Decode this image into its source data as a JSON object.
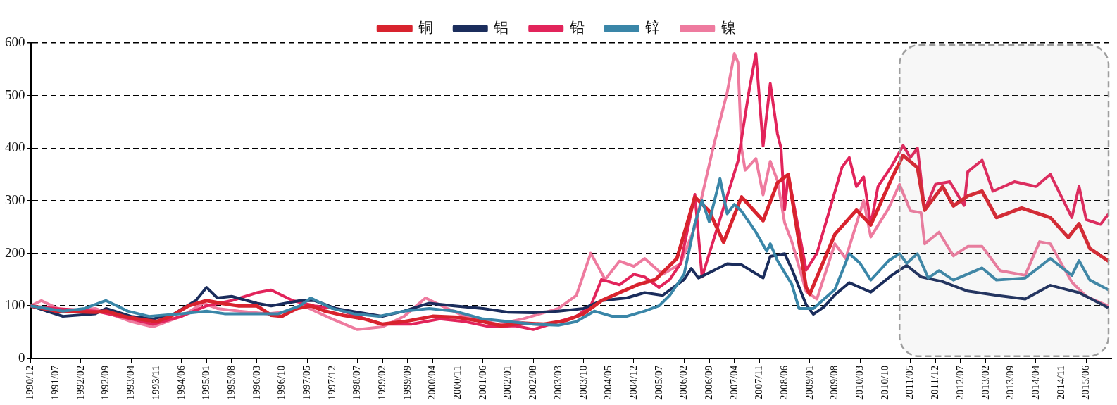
{
  "chart_data": {
    "type": "line",
    "xlim": [
      "1990-12",
      "2016-01"
    ],
    "xticks": [
      {
        "value": "1990-12",
        "label": "1990/12"
      },
      {
        "value": "1991-07",
        "label": "1991/07"
      },
      {
        "value": "1992-02",
        "label": "1992/02"
      },
      {
        "value": "1992-09",
        "label": "1992/09"
      },
      {
        "value": "1993-04",
        "label": "1993/04"
      },
      {
        "value": "1993-11",
        "label": "1993/11"
      },
      {
        "value": "1994-06",
        "label": "1994/06"
      },
      {
        "value": "1995-01",
        "label": "1995/01"
      },
      {
        "value": "1995-08",
        "label": "1995/08"
      },
      {
        "value": "1996-03",
        "label": "1996/03"
      },
      {
        "value": "1996-10",
        "label": "1996/10"
      },
      {
        "value": "1997-05",
        "label": "1997/05"
      },
      {
        "value": "1997-12",
        "label": "1997/12"
      },
      {
        "value": "1998-07",
        "label": "1998/07"
      },
      {
        "value": "1999-02",
        "label": "1999/02"
      },
      {
        "value": "1999-09",
        "label": "1999/09"
      },
      {
        "value": "2000-04",
        "label": "2000/04"
      },
      {
        "value": "2000-11",
        "label": "2000/11"
      },
      {
        "value": "2001-06",
        "label": "2001/06"
      },
      {
        "value": "2002-01",
        "label": "2002/01"
      },
      {
        "value": "2002-08",
        "label": "2002/08"
      },
      {
        "value": "2003-03",
        "label": "2003/03"
      },
      {
        "value": "2003-10",
        "label": "2003/10"
      },
      {
        "value": "2004-05",
        "label": "2004/05"
      },
      {
        "value": "2004-12",
        "label": "2004/12"
      },
      {
        "value": "2005-07",
        "label": "2005/07"
      },
      {
        "value": "2006-02",
        "label": "2006/02"
      },
      {
        "value": "2006-09",
        "label": "2006/09"
      },
      {
        "value": "2007-04",
        "label": "2007/04"
      },
      {
        "value": "2007-11",
        "label": "2007/11"
      },
      {
        "value": "2008-06",
        "label": "2008/06"
      },
      {
        "value": "2009-01",
        "label": "2009/01"
      },
      {
        "value": "2009-08",
        "label": "2009/08"
      },
      {
        "value": "2010-03",
        "label": "2010/03"
      },
      {
        "value": "2010-10",
        "label": "2010/10"
      },
      {
        "value": "2011-05",
        "label": "2011/05"
      },
      {
        "value": "2011-12",
        "label": "2011/12"
      },
      {
        "value": "2012-07",
        "label": "2012/07"
      },
      {
        "value": "2013-02",
        "label": "2013/02"
      },
      {
        "value": "2013-09",
        "label": "2013/09"
      },
      {
        "value": "2014-04",
        "label": "2014/04"
      },
      {
        "value": "2014-11",
        "label": "2014/11"
      },
      {
        "value": "2015-06",
        "label": "2015/06"
      }
    ],
    "ylim": [
      0,
      600
    ],
    "yticks": [
      0,
      100,
      200,
      300,
      400,
      500,
      600
    ],
    "grid": "y",
    "legend": "top",
    "bands": [
      {
        "axis": "x",
        "from": "2011-02",
        "to": "2016-01",
        "color": "#9e9e9e"
      }
    ],
    "series": [
      {
        "name": "铜",
        "color": "#d8232e",
        "x": [
          "1990-12",
          "1991-07",
          "1992-06",
          "1992-09",
          "1993-02",
          "1993-06",
          "1993-11",
          "1994-03",
          "1994-08",
          "1995-01",
          "1995-05",
          "1995-10",
          "1996-03",
          "1996-07",
          "1996-10",
          "1997-02",
          "1997-06",
          "1997-10",
          "1998-03",
          "1998-09",
          "1999-02",
          "1999-08",
          "2000-04",
          "2000-11",
          "2001-06",
          "2001-11",
          "2002-05",
          "2002-11",
          "2003-05",
          "2003-10",
          "2004-03",
          "2004-08",
          "2005-01",
          "2005-06",
          "2005-12",
          "2006-05",
          "2006-09",
          "2007-01",
          "2007-06",
          "2007-12",
          "2008-04",
          "2008-07",
          "2008-12",
          "2009-01",
          "2009-08",
          "2010-02",
          "2010-06",
          "2010-12",
          "2011-03",
          "2011-07",
          "2011-09",
          "2012-02",
          "2012-05",
          "2012-09",
          "2013-01",
          "2013-05",
          "2013-12",
          "2014-08",
          "2015-01",
          "2015-04",
          "2015-07",
          "2015-12"
        ],
        "values": [
          100,
          90,
          88,
          90,
          80,
          75,
          70,
          80,
          100,
          110,
          105,
          100,
          100,
          82,
          80,
          95,
          100,
          90,
          82,
          75,
          65,
          70,
          80,
          78,
          70,
          62,
          67,
          65,
          72,
          85,
          110,
          125,
          140,
          150,
          190,
          307,
          280,
          221,
          307,
          262,
          334,
          350,
          135,
          122,
          236,
          282,
          254,
          345,
          386,
          363,
          282,
          327,
          290,
          309,
          318,
          268,
          286,
          268,
          230,
          256,
          209,
          186
        ]
      },
      {
        "name": "铝",
        "color": "#1b2d5c",
        "x": [
          "1990-12",
          "1991-09",
          "1992-06",
          "1992-09",
          "1993-04",
          "1993-10",
          "1994-04",
          "1994-10",
          "1995-01",
          "1995-04",
          "1995-08",
          "1996-03",
          "1996-07",
          "1997-03",
          "1997-07",
          "1998-01",
          "1998-07",
          "1999-02",
          "1999-08",
          "2000-03",
          "2000-10",
          "2001-06",
          "2002-01",
          "2002-08",
          "2003-03",
          "2003-10",
          "2004-03",
          "2004-10",
          "2005-03",
          "2005-08",
          "2006-02",
          "2006-04",
          "2006-06",
          "2007-02",
          "2007-06",
          "2007-12",
          "2008-02",
          "2008-06",
          "2008-08",
          "2008-12",
          "2009-02",
          "2009-05",
          "2009-08",
          "2009-12",
          "2010-06",
          "2010-12",
          "2011-04",
          "2011-08",
          "2012-02",
          "2012-09",
          "2013-06",
          "2014-01",
          "2014-08",
          "2015-04",
          "2015-12"
        ],
        "values": [
          100,
          80,
          85,
          95,
          80,
          75,
          85,
          110,
          135,
          115,
          118,
          105,
          100,
          110,
          110,
          95,
          88,
          80,
          90,
          105,
          100,
          95,
          88,
          87,
          90,
          95,
          110,
          115,
          125,
          120,
          150,
          171,
          153,
          180,
          178,
          153,
          194,
          199,
          170,
          102,
          84,
          98,
          121,
          144,
          126,
          159,
          177,
          155,
          146,
          128,
          119,
          113,
          139,
          125,
          97
        ]
      },
      {
        "name": "铅",
        "color": "#e2245b",
        "x": [
          "1990-12",
          "1991-07",
          "1992-06",
          "1993-04",
          "1993-10",
          "1994-06",
          "1995-01",
          "1995-08",
          "1996-03",
          "1996-07",
          "1997-01",
          "1997-07",
          "1998-01",
          "1998-07",
          "1999-02",
          "1999-10",
          "2000-06",
          "2001-01",
          "2001-08",
          "2002-03",
          "2002-08",
          "2003-03",
          "2003-08",
          "2003-12",
          "2004-03",
          "2004-08",
          "2004-12",
          "2005-03",
          "2005-07",
          "2005-10",
          "2006-01",
          "2006-05",
          "2006-07",
          "2007-05",
          "2007-08",
          "2007-10",
          "2007-12",
          "2008-02",
          "2008-04",
          "2008-05",
          "2008-06",
          "2008-07",
          "2008-12",
          "2009-03",
          "2009-10",
          "2009-12",
          "2010-02",
          "2010-04",
          "2010-06",
          "2010-08",
          "2010-12",
          "2011-03",
          "2011-05",
          "2011-07",
          "2011-09",
          "2011-12",
          "2012-04",
          "2012-08",
          "2012-09",
          "2013-01",
          "2013-04",
          "2013-10",
          "2014-04",
          "2014-08",
          "2015-02",
          "2015-04",
          "2015-06",
          "2015-10",
          "2015-12"
        ],
        "values": [
          100,
          95,
          90,
          75,
          65,
          80,
          100,
          110,
          125,
          130,
          110,
          100,
          95,
          80,
          65,
          65,
          75,
          70,
          60,
          62,
          55,
          70,
          80,
          100,
          150,
          140,
          160,
          155,
          135,
          150,
          180,
          312,
          155,
          375,
          505,
          580,
          404,
          523,
          427,
          400,
          283,
          350,
          168,
          200,
          364,
          382,
          327,
          345,
          254,
          327,
          368,
          405,
          382,
          400,
          282,
          331,
          336,
          291,
          355,
          377,
          318,
          336,
          327,
          350,
          268,
          327,
          264,
          255,
          273
        ]
      },
      {
        "name": "锌",
        "color": "#3a86a8",
        "x": [
          "1990-12",
          "1991-09",
          "1992-03",
          "1992-09",
          "1993-03",
          "1993-09",
          "1994-06",
          "1995-01",
          "1995-06",
          "1996-01",
          "1996-09",
          "1997-03",
          "1997-06",
          "1997-12",
          "1998-06",
          "1999-01",
          "1999-08",
          "2000-03",
          "2000-10",
          "2001-06",
          "2002-01",
          "2002-08",
          "2003-03",
          "2003-08",
          "2004-01",
          "2004-06",
          "2004-10",
          "2005-03",
          "2005-07",
          "2005-10",
          "2006-02",
          "2006-05",
          "2006-07",
          "2006-09",
          "2006-12",
          "2007-02",
          "2007-04",
          "2007-06",
          "2007-10",
          "2008-01",
          "2008-02",
          "2008-04",
          "2008-08",
          "2008-10",
          "2009-02",
          "2009-08",
          "2009-12",
          "2010-03",
          "2010-06",
          "2010-11",
          "2011-02",
          "2011-04",
          "2011-07",
          "2011-10",
          "2012-01",
          "2012-05",
          "2013-01",
          "2013-05",
          "2014-01",
          "2014-08",
          "2015-02",
          "2015-04",
          "2015-07",
          "2015-12"
        ],
        "values": [
          100,
          90,
          95,
          110,
          90,
          80,
          85,
          90,
          85,
          85,
          85,
          100,
          115,
          95,
          85,
          80,
          90,
          95,
          90,
          75,
          70,
          65,
          63,
          70,
          90,
          80,
          80,
          90,
          100,
          120,
          160,
          257,
          300,
          260,
          342,
          275,
          293,
          280,
          240,
          204,
          218,
          186,
          141,
          95,
          95,
          131,
          199,
          181,
          149,
          186,
          199,
          181,
          199,
          153,
          167,
          149,
          172,
          149,
          153,
          190,
          158,
          186,
          149,
          131
        ]
      },
      {
        "name": "镍",
        "color": "#ee7b9f",
        "x": [
          "1990-12",
          "1991-03",
          "1991-09",
          "1992-06",
          "1992-12",
          "1993-04",
          "1993-10",
          "1994-06",
          "1994-12",
          "1995-04",
          "1995-10",
          "1996-06",
          "1997-01",
          "1997-04",
          "1997-12",
          "1998-07",
          "1999-02",
          "1999-08",
          "2000-02",
          "2000-08",
          "2001-01",
          "2001-10",
          "2002-05",
          "2002-10",
          "2003-03",
          "2003-08",
          "2003-12",
          "2004-04",
          "2004-08",
          "2004-12",
          "2005-03",
          "2005-08",
          "2006-01",
          "2006-05",
          "2006-10",
          "2007-02",
          "2007-04",
          "2007-05",
          "2007-06",
          "2007-07",
          "2007-10",
          "2007-12",
          "2008-02",
          "2008-04",
          "2008-06",
          "2008-08",
          "2008-12",
          "2009-03",
          "2009-08",
          "2009-11",
          "2010-04",
          "2010-06",
          "2010-11",
          "2011-02",
          "2011-05",
          "2011-08",
          "2011-09",
          "2012-01",
          "2012-05",
          "2012-09",
          "2013-01",
          "2013-06",
          "2014-01",
          "2014-05",
          "2014-08",
          "2015-02",
          "2015-06",
          "2015-12"
        ],
        "values": [
          100,
          110,
          90,
          95,
          80,
          70,
          60,
          80,
          105,
          95,
          90,
          85,
          90,
          100,
          75,
          55,
          60,
          80,
          115,
          95,
          80,
          65,
          75,
          85,
          95,
          120,
          200,
          150,
          185,
          175,
          190,
          160,
          180,
          250,
          398,
          506,
          580,
          563,
          400,
          358,
          380,
          311,
          375,
          338,
          258,
          222,
          127,
          113,
          218,
          190,
          300,
          231,
          286,
          331,
          281,
          277,
          218,
          240,
          195,
          213,
          213,
          167,
          158,
          222,
          218,
          145,
          118,
          100
        ]
      }
    ]
  }
}
